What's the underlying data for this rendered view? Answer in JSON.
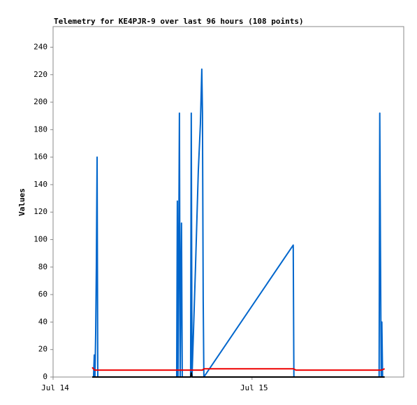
{
  "chart_data": {
    "type": "line",
    "title": "Telemetry for KE4PJR-9 over last 96 hours (108 points)",
    "y_label": "Values",
    "xlim": [
      0,
      42.3
    ],
    "xticks": [
      {
        "value": 0,
        "label": "Jul 14"
      },
      {
        "value": 24,
        "label": "Jul 15"
      }
    ],
    "ylim": [
      0,
      255
    ],
    "yticks": [
      0,
      20,
      40,
      60,
      80,
      100,
      120,
      140,
      160,
      180,
      200,
      220,
      240
    ],
    "grid": false,
    "series": [
      {
        "color": "#0066cc",
        "x": [
          4.88,
          4.97,
          5.05,
          5.14,
          5.22,
          5.31,
          5.39,
          14.91,
          14.99,
          15.07,
          15.16,
          15.24,
          15.33,
          15.41,
          15.49,
          15.58,
          16.59,
          16.67,
          16.76,
          16.93,
          17.18,
          17.52,
          17.77,
          17.94,
          18.02,
          18.11,
          18.19,
          28.97,
          29.05,
          39.33,
          39.41,
          39.49,
          39.58,
          39.66,
          39.75
        ],
        "values": [
          0,
          16,
          0,
          32,
          80,
          160,
          0,
          0,
          128,
          0,
          96,
          192,
          0,
          64,
          112,
          0,
          0,
          192,
          0,
          32,
          80,
          150,
          184,
          224,
          192,
          56,
          0,
          96,
          0,
          0,
          192,
          96,
          0,
          40,
          0
        ]
      },
      {
        "color": "#ee0000",
        "x": [
          4.72,
          5.0,
          18.0,
          18.2,
          29.0,
          29.3,
          39.6,
          40.0
        ],
        "values": [
          7,
          5,
          5,
          6,
          6,
          5,
          5,
          6
        ]
      },
      {
        "color": "#000000",
        "x": [
          4.72,
          16.6,
          16.67,
          16.76,
          40.0
        ],
        "values": [
          0,
          0,
          3,
          0,
          0
        ]
      }
    ]
  }
}
